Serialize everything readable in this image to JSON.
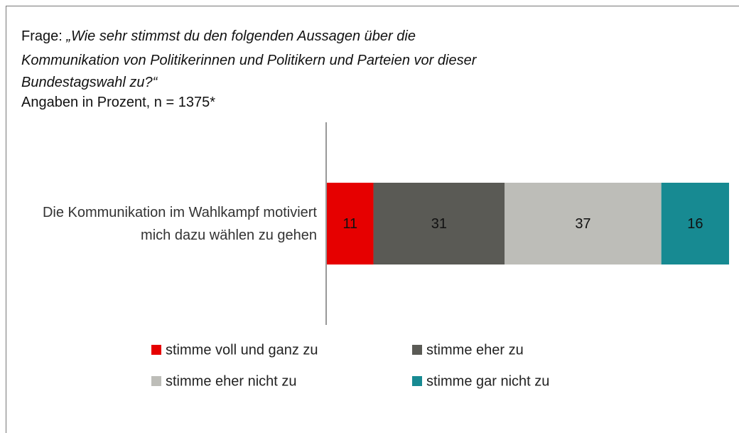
{
  "chart_data": {
    "type": "stacked-bar",
    "subtitle_prefix": "Frage:",
    "question_lines": [
      "„Wie sehr stimmst du den folgenden Aussagen über die",
      "Kommunikation von Politikerinnen und Politikern und Parteien vor dieser",
      "Bundestagswahl zu?“"
    ],
    "note": "Angaben in Prozent, n = 1375*",
    "categories": [
      "Die Kommunikation im Wahlkampf motiviert mich dazu wählen zu gehen"
    ],
    "series": [
      {
        "name": "stimme voll und ganz zu",
        "color": "#e60000",
        "values": [
          11
        ]
      },
      {
        "name": "stimme eher zu",
        "color": "#5a5a55",
        "values": [
          31
        ]
      },
      {
        "name": "stimme eher nicht zu",
        "color": "#bdbdb8",
        "values": [
          37
        ]
      },
      {
        "name": "stimme gar nicht zu",
        "color": "#178a92",
        "values": [
          16
        ]
      }
    ]
  }
}
